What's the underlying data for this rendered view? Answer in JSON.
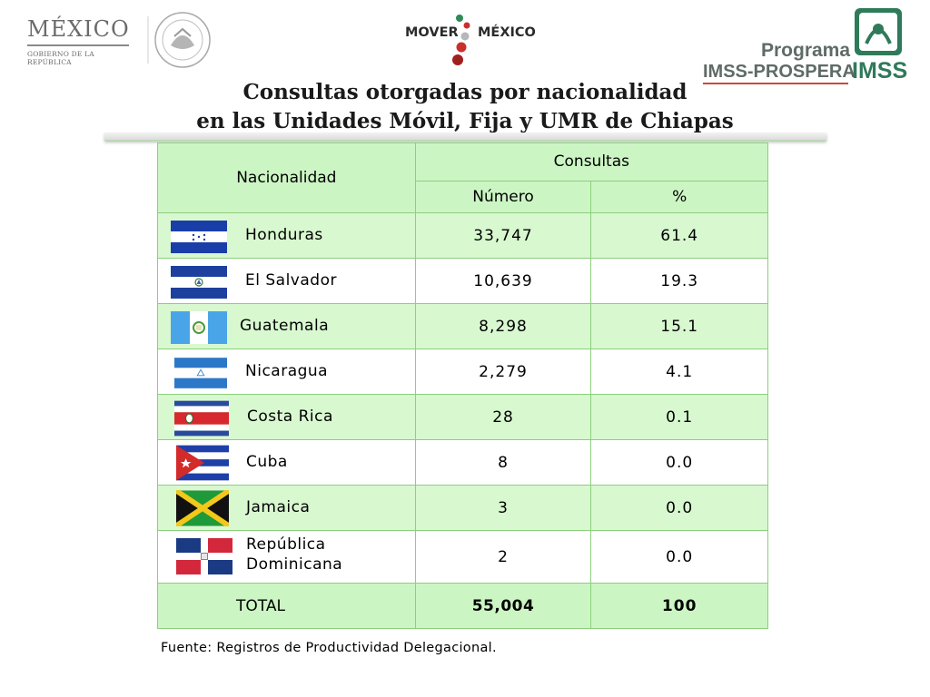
{
  "header": {
    "mexico_word": "MÉXICO",
    "mexico_sub": "GOBIERNO DE LA REPÚBLICA",
    "mover_left": "MOVER",
    "mover_right": "MÉXICO",
    "programa": "Programa",
    "prospera": "IMSS-PROSPERA",
    "imss": "IMSS"
  },
  "title": {
    "line1": "Consultas otorgadas por nacionalidad",
    "line2": "en las Unidades Móvil, Fija y UMR  de Chiapas"
  },
  "table": {
    "col_nationality": "Nacionalidad",
    "col_group": "Consultas",
    "col_number": "Número",
    "col_percent": "%",
    "rows": [
      {
        "nationality": "Honduras",
        "number": "33,747",
        "percent": "61.4",
        "flag_icon": "honduras-flag-icon"
      },
      {
        "nationality": "El Salvador",
        "number": "10,639",
        "percent": "19.3",
        "flag_icon": "el-salvador-flag-icon"
      },
      {
        "nationality": "Guatemala",
        "number": "8,298",
        "percent": "15.1",
        "flag_icon": "guatemala-flag-icon"
      },
      {
        "nationality": "Nicaragua",
        "number": "2,279",
        "percent": "4.1",
        "flag_icon": "nicaragua-flag-icon"
      },
      {
        "nationality": "Costa Rica",
        "number": "28",
        "percent": "0.1",
        "flag_icon": "costa-rica-flag-icon"
      },
      {
        "nationality": "Cuba",
        "number": "8",
        "percent": "0.0",
        "flag_icon": "cuba-flag-icon"
      },
      {
        "nationality": "Jamaica",
        "number": "3",
        "percent": "0.0",
        "flag_icon": "jamaica-flag-icon"
      },
      {
        "nationality_line1": "República",
        "nationality_line2": "Dominicana",
        "number": "2",
        "percent": "0.0",
        "flag_icon": "dominican-republic-flag-icon"
      }
    ],
    "total_label": "TOTAL",
    "total_number": "55,004",
    "total_percent": "100"
  },
  "footer": {
    "source": "Fuente: Registros de Productividad Delegacional."
  },
  "colors": {
    "header_fill": "#ccf5c4",
    "row_alt_fill": "#d8f8d0",
    "border": "#8ccf7d",
    "imss_green": "#2f7a5a"
  }
}
